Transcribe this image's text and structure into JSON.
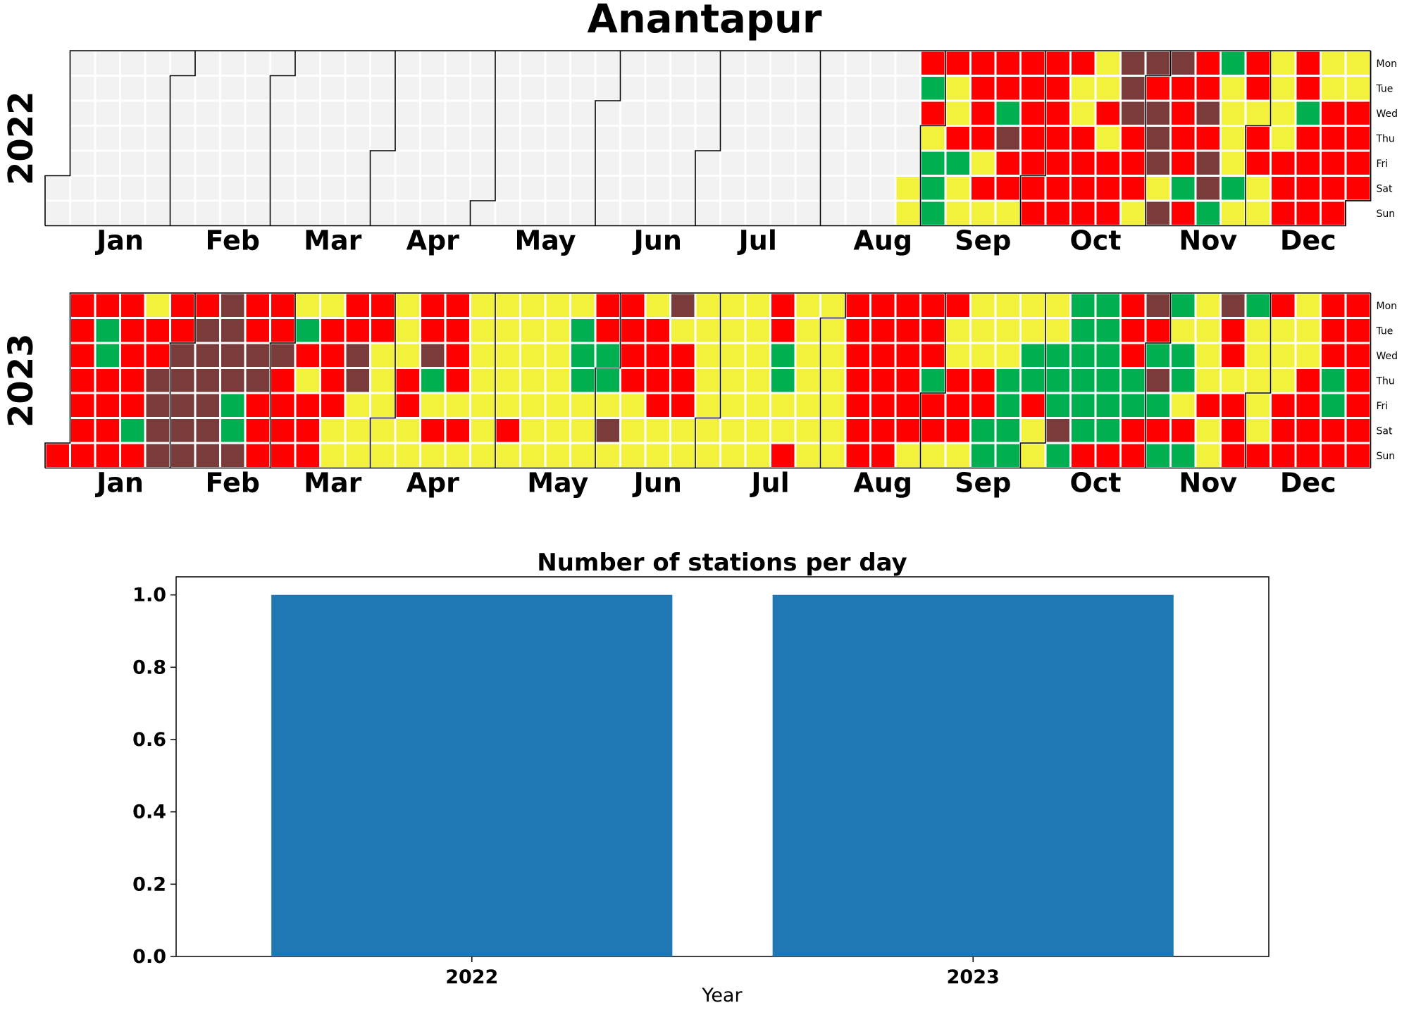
{
  "title": "Anantapur",
  "colors": {
    "empty": "#f2f2f2",
    "red": "#ff0000",
    "yellow": "#f2f23c",
    "green": "#00b050",
    "brown": "#7a3b3b",
    "bar": "#1f77b4"
  },
  "weekdays": [
    "Mon",
    "Tue",
    "Wed",
    "Thu",
    "Fri",
    "Sat",
    "Sun"
  ],
  "months": [
    "Jan",
    "Feb",
    "Mar",
    "Apr",
    "May",
    "Jun",
    "Jul",
    "Aug",
    "Sep",
    "Oct",
    "Nov",
    "Dec"
  ],
  "chart_data": [
    {
      "type": "heatmap",
      "subtype": "calendar",
      "year": "2022",
      "weekdays": [
        "Mon",
        "Tue",
        "Wed",
        "Thu",
        "Fri",
        "Sat",
        "Sun"
      ],
      "months": [
        "Jan",
        "Feb",
        "Mar",
        "Apr",
        "May",
        "Jun",
        "Jul",
        "Aug",
        "Sep",
        "Oct",
        "Nov",
        "Dec"
      ],
      "first_day_of_year": "Sat",
      "color_key": {
        "0": "empty",
        "1": "red",
        "2": "yellow",
        "3": "green",
        "4": "brown"
      },
      "week_columns": [
        "0000000",
        "0000000",
        "0000000",
        "0000000",
        "0000000",
        "0000000",
        "0000000",
        "0000000",
        "0000000",
        "0000000",
        "0000000",
        "0000000",
        "0000000",
        "0000000",
        "0000000",
        "0000000",
        "0000000",
        "0000000",
        "0000000",
        "0000000",
        "0000000",
        "0000000",
        "0000000",
        "0000000",
        "0000000",
        "0000000",
        "0000000",
        "0000000",
        "0000000",
        "0000000",
        "0000000",
        "0000000",
        "0000000",
        "0000000",
        "0000022",
        "1312333",
        "1221322",
        "1111212",
        "1134112",
        "1111111",
        "1111111",
        "1221111",
        "2212111",
        "4441112",
        "4144424",
        "4111131",
        "1141443",
        "3222232",
        "1121122",
        "2222111",
        "1131111",
        "2211111",
        "2211111"
      ]
    },
    {
      "type": "heatmap",
      "subtype": "calendar",
      "year": "2023",
      "weekdays": [
        "Mon",
        "Tue",
        "Wed",
        "Thu",
        "Fri",
        "Sat",
        "Sun"
      ],
      "months": [
        "Jan",
        "Feb",
        "Mar",
        "Apr",
        "May",
        "Jun",
        "Jul",
        "Aug",
        "Sep",
        "Oct",
        "Nov",
        "Dec"
      ],
      "first_day_of_year": "Sun",
      "color_key": {
        "0": "empty",
        "1": "red",
        "2": "yellow",
        "3": "green",
        "4": "brown"
      },
      "week_columns": [
        "0000001",
        "1111111",
        "1331111",
        "1111131",
        "2114444",
        "1144444",
        "1444444",
        "4444334",
        "1144111",
        "1141111",
        "2312111",
        "2111122",
        "1144222",
        "1122222",
        "2221122",
        "1143212",
        "1111212",
        "2222222",
        "2222212",
        "2222222",
        "2222222",
        "2333222",
        "1133242",
        "1111222",
        "2111122",
        "4211122",
        "2222222",
        "2222222",
        "2222222",
        "1133221",
        "2222222",
        "2222222",
        "1111111",
        "1111111",
        "1111112",
        "1113112",
        "1221112",
        "2221133",
        "2223333",
        "2233122",
        "2233343",
        "3333331",
        "3333331",
        "1113311",
        "4134313",
        "3233213",
        "2222122",
        "4112111",
        "3222221",
        "1222111",
        "2221111",
        "1113311",
        "1111111"
      ]
    },
    {
      "type": "bar",
      "title": "Number of stations per day",
      "categories": [
        "2022",
        "2023"
      ],
      "values": [
        1,
        1
      ],
      "xlabel": "Year",
      "ylabel": "",
      "ylim": [
        0,
        1.05
      ],
      "yticks": [
        "0.0",
        "0.2",
        "0.4",
        "0.6",
        "0.8",
        "1.0"
      ]
    }
  ]
}
